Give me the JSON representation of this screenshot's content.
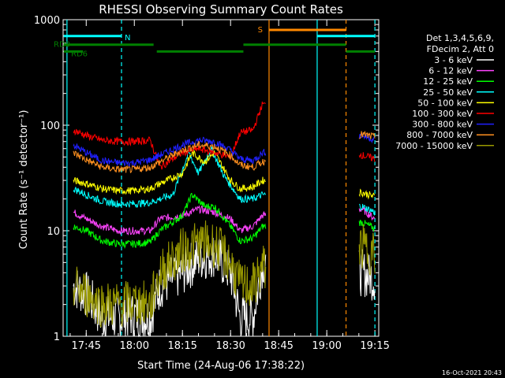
{
  "chart_data": {
    "type": "line",
    "title": "RHESSI Observing Summary Count Rates",
    "xlabel": "Start Time (24-Aug-06 17:38:22)",
    "ylabel": "Count Rate (s⁻¹ detector⁻¹)",
    "yscale": "log",
    "ylim": [
      1,
      1000
    ],
    "xlim_minutes": [
      17.63,
      19.27
    ],
    "x_ticks": [
      "17:45",
      "18:00",
      "18:15",
      "18:30",
      "18:45",
      "19:00",
      "19:15"
    ],
    "y_ticks": [
      "1",
      "10",
      "100",
      "1000"
    ],
    "legend_header": [
      "Det 1,3,4,5,6,9,",
      "FDecim 2, Att 0"
    ],
    "legend_placement": "right",
    "grid": false,
    "series": [
      {
        "name": "3 - 6 keV",
        "color": "#ffffff",
        "points": [
          [
            "17:41",
            3
          ],
          [
            "17:45",
            2.5
          ],
          [
            "17:50",
            1.5
          ],
          [
            "17:55",
            1.5
          ],
          [
            "18:00",
            1.6
          ],
          [
            "18:05",
            1.5
          ],
          [
            "18:08",
            3
          ],
          [
            "18:15",
            4
          ],
          [
            "18:20",
            5.5
          ],
          [
            "18:25",
            6
          ],
          [
            "18:30",
            4
          ],
          [
            "18:33",
            1.5
          ],
          [
            "18:37",
            1.5
          ],
          [
            "18:40",
            5
          ],
          [
            "19:11",
            4
          ],
          [
            "19:15",
            3.5
          ]
        ]
      },
      {
        "name": "6 - 12 keV",
        "color": "#ff44ff",
        "points": [
          [
            "17:41",
            15
          ],
          [
            "17:45",
            13
          ],
          [
            "17:50",
            11
          ],
          [
            "17:55",
            10
          ],
          [
            "18:00",
            10
          ],
          [
            "18:05",
            10
          ],
          [
            "18:08",
            13
          ],
          [
            "18:15",
            14
          ],
          [
            "18:20",
            16
          ],
          [
            "18:25",
            15
          ],
          [
            "18:30",
            13
          ],
          [
            "18:33",
            10
          ],
          [
            "18:37",
            11
          ],
          [
            "18:40",
            14
          ],
          [
            "19:11",
            16
          ],
          [
            "19:15",
            13
          ]
        ]
      },
      {
        "name": "12 - 25 keV",
        "color": "#00ff00",
        "points": [
          [
            "17:41",
            11
          ],
          [
            "17:45",
            10
          ],
          [
            "17:50",
            8
          ],
          [
            "17:55",
            7.5
          ],
          [
            "18:00",
            7.5
          ],
          [
            "18:05",
            7.8
          ],
          [
            "18:08",
            10
          ],
          [
            "18:15",
            14
          ],
          [
            "18:18",
            22
          ],
          [
            "18:22",
            17
          ],
          [
            "18:25",
            17
          ],
          [
            "18:30",
            11
          ],
          [
            "18:33",
            8
          ],
          [
            "18:37",
            8.5
          ],
          [
            "18:40",
            11
          ],
          [
            "19:11",
            12
          ],
          [
            "19:15",
            10.5
          ]
        ]
      },
      {
        "name": "25 - 50 keV",
        "color": "#00ffff",
        "points": [
          [
            "17:41",
            25
          ],
          [
            "17:45",
            22
          ],
          [
            "17:50",
            19
          ],
          [
            "17:55",
            18
          ],
          [
            "18:00",
            18
          ],
          [
            "18:05",
            18.5
          ],
          [
            "18:08",
            20
          ],
          [
            "18:12",
            22
          ],
          [
            "18:17",
            55
          ],
          [
            "18:20",
            35
          ],
          [
            "18:24",
            60
          ],
          [
            "18:28",
            33
          ],
          [
            "18:33",
            20
          ],
          [
            "18:37",
            20
          ],
          [
            "18:40",
            22
          ],
          [
            "19:11",
            17
          ],
          [
            "19:15",
            15
          ]
        ]
      },
      {
        "name": "50 - 100 keV",
        "color": "#ffff00",
        "points": [
          [
            "17:41",
            30
          ],
          [
            "17:45",
            28
          ],
          [
            "17:50",
            25
          ],
          [
            "17:55",
            24
          ],
          [
            "18:00",
            24
          ],
          [
            "18:05",
            25
          ],
          [
            "18:08",
            28
          ],
          [
            "18:15",
            35
          ],
          [
            "18:18",
            55
          ],
          [
            "18:22",
            45
          ],
          [
            "18:25",
            55
          ],
          [
            "18:30",
            30
          ],
          [
            "18:33",
            25
          ],
          [
            "18:37",
            26
          ],
          [
            "18:40",
            30
          ],
          [
            "19:11",
            23
          ],
          [
            "19:15",
            21
          ]
        ]
      },
      {
        "name": "100 - 300 keV",
        "color": "#ff0000",
        "points": [
          [
            "17:41",
            90
          ],
          [
            "17:45",
            80
          ],
          [
            "17:50",
            72
          ],
          [
            "17:55",
            70
          ],
          [
            "18:00",
            70
          ],
          [
            "18:05",
            72
          ],
          [
            "18:08",
            40
          ],
          [
            "18:15",
            55
          ],
          [
            "18:20",
            60
          ],
          [
            "18:25",
            55
          ],
          [
            "18:30",
            50
          ],
          [
            "18:33",
            85
          ],
          [
            "18:37",
            90
          ],
          [
            "18:40",
            160
          ],
          [
            "19:11",
            52
          ],
          [
            "19:15",
            48
          ]
        ]
      },
      {
        "name": "300 - 800 keV",
        "color": "#2020ff",
        "points": [
          [
            "17:41",
            65
          ],
          [
            "17:45",
            55
          ],
          [
            "17:50",
            46
          ],
          [
            "17:55",
            44
          ],
          [
            "18:00",
            44
          ],
          [
            "18:05",
            47
          ],
          [
            "18:08",
            52
          ],
          [
            "18:15",
            65
          ],
          [
            "18:20",
            72
          ],
          [
            "18:25",
            70
          ],
          [
            "18:30",
            58
          ],
          [
            "18:33",
            48
          ],
          [
            "18:37",
            46
          ],
          [
            "18:40",
            55
          ],
          [
            "19:11",
            80
          ],
          [
            "19:15",
            73
          ]
        ]
      },
      {
        "name": "800 - 7000 keV",
        "color": "#ff9020",
        "points": [
          [
            "17:41",
            55
          ],
          [
            "17:45",
            47
          ],
          [
            "17:50",
            40
          ],
          [
            "17:55",
            38
          ],
          [
            "18:00",
            38
          ],
          [
            "18:05",
            40
          ],
          [
            "18:08",
            45
          ],
          [
            "18:15",
            58
          ],
          [
            "18:20",
            65
          ],
          [
            "18:25",
            63
          ],
          [
            "18:30",
            52
          ],
          [
            "18:33",
            42
          ],
          [
            "18:37",
            40
          ],
          [
            "18:40",
            45
          ],
          [
            "19:11",
            82
          ],
          [
            "19:15",
            77
          ]
        ]
      },
      {
        "name": "7000 - 15000 keV",
        "color": "#9a9a00",
        "points": [
          [
            "17:41",
            3
          ],
          [
            "17:45",
            2.5
          ],
          [
            "17:50",
            2
          ],
          [
            "17:55",
            2
          ],
          [
            "18:00",
            2.1
          ],
          [
            "18:05",
            2
          ],
          [
            "18:08",
            4
          ],
          [
            "18:15",
            6.5
          ],
          [
            "18:20",
            7.5
          ],
          [
            "18:25",
            7.5
          ],
          [
            "18:30",
            5
          ],
          [
            "18:33",
            3
          ],
          [
            "18:37",
            3
          ],
          [
            "18:40",
            4.5
          ],
          [
            "19:11",
            7
          ],
          [
            "19:15",
            6
          ]
        ]
      }
    ],
    "annotations": [
      {
        "label": "N",
        "color": "#00ffff",
        "bar": [
          "17:38",
          "17:56"
        ],
        "level": 700
      },
      {
        "label": "S",
        "color": "#ff8800",
        "bar": [
          "18:42",
          "19:06"
        ],
        "level": 800
      },
      {
        "label": "",
        "color": "#00ffff",
        "bar": [
          "18:57",
          "19:15"
        ],
        "level": 700
      },
      {
        "label": "RD0",
        "color": "#008000",
        "bar": [
          "17:38",
          "18:06"
        ],
        "level": 580
      },
      {
        "label": "RD6",
        "color": "#008000",
        "bar": [
          "17:38",
          "17:44"
        ],
        "level": 500
      },
      {
        "label": "",
        "color": "#008000",
        "bar": [
          "18:07",
          "18:34"
        ],
        "level": 500
      },
      {
        "label": "",
        "color": "#008000",
        "bar": [
          "18:34",
          "19:06"
        ],
        "level": 580
      },
      {
        "label": "",
        "color": "#008000",
        "bar": [
          "19:06",
          "19:15"
        ],
        "level": 500
      }
    ],
    "vertical_lines": [
      {
        "t": "17:39",
        "color": "#00ffff",
        "style": "solid"
      },
      {
        "t": "17:56",
        "color": "#00ffff",
        "style": "dashed"
      },
      {
        "t": "18:42",
        "color": "#ff8800",
        "style": "solid"
      },
      {
        "t": "18:57",
        "color": "#00ffff",
        "style": "solid"
      },
      {
        "t": "19:06",
        "color": "#ff8800",
        "style": "dashed"
      },
      {
        "t": "19:15",
        "color": "#00ffff",
        "style": "dashed"
      }
    ],
    "gaps": [
      [
        "18:41",
        "19:10"
      ]
    ],
    "footer": "16-Oct-2021 20:43"
  }
}
